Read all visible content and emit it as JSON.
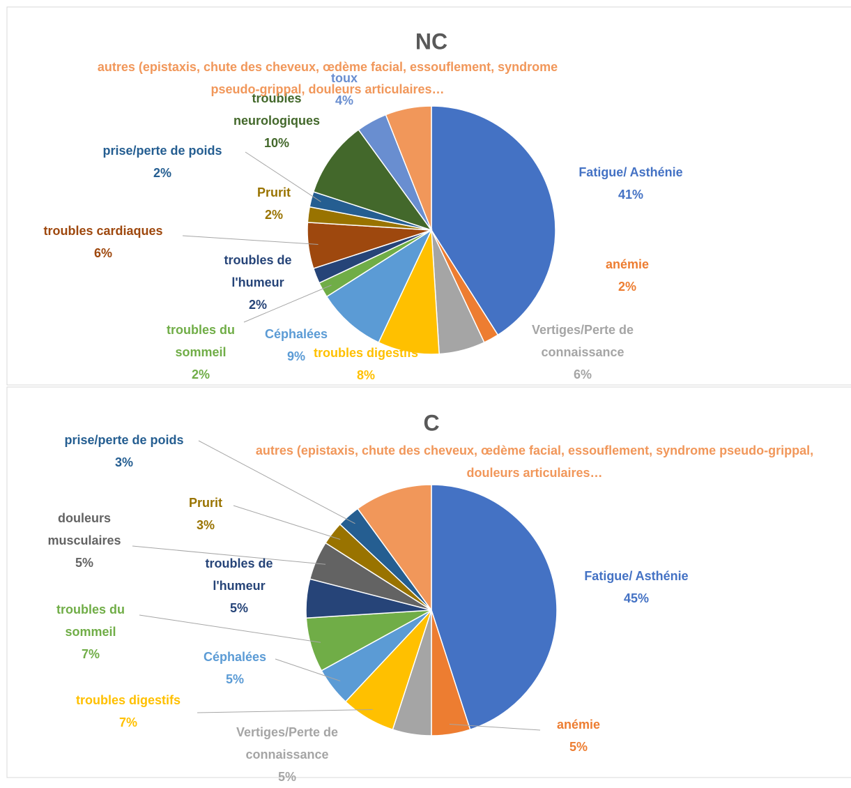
{
  "chart_data": [
    {
      "type": "pie",
      "title": "NC",
      "categories": [
        "Fatigue/ Asthénie",
        "anémie",
        "Vertiges/Perte de connaissance",
        "troubles digestifs",
        "Céphalées",
        "troubles du sommeil",
        "troubles de l'humeur",
        "troubles cardiaques",
        "Prurit",
        "prise/perte de poids",
        "troubles neurologiques",
        "toux",
        "autres (epistaxis, chute des cheveux, œdème facial, essouflement, syndrome pseudo-grippal, douleurs articulaires…"
      ],
      "values": [
        41,
        2,
        6,
        8,
        9,
        2,
        2,
        6,
        2,
        2,
        10,
        4,
        6
      ],
      "value_labels": [
        "41%",
        "2%",
        "6%",
        "8%",
        "9%",
        "2%",
        "2%",
        "6%",
        "2%",
        "2%",
        "10%",
        "4%",
        null
      ],
      "colors": [
        "#4472C4",
        "#ED7D31",
        "#A5A5A5",
        "#FFC000",
        "#5B9BD5",
        "#70AD47",
        "#264478",
        "#9E480E",
        "#997300",
        "#255E91",
        "#43682B",
        "#698ED0",
        "#F1975A"
      ]
    },
    {
      "type": "pie",
      "title": "C",
      "categories": [
        "Fatigue/ Asthénie",
        "anémie",
        "Vertiges/Perte de connaissance",
        "troubles digestifs",
        "Céphalées",
        "troubles du sommeil",
        "troubles de l'humeur",
        "douleurs musculaires",
        "Prurit",
        "prise/perte de poids",
        "autres (epistaxis, chute des cheveux, œdème facial, essouflement, syndrome pseudo-grippal, douleurs articulaires…"
      ],
      "values": [
        45,
        5,
        5,
        7,
        5,
        7,
        5,
        5,
        3,
        3,
        10
      ],
      "value_labels": [
        "45%",
        "5%",
        "5%",
        "7%",
        "5%",
        "7%",
        "5%",
        "5%",
        "3%",
        "3%",
        null
      ],
      "colors": [
        "#4472C4",
        "#ED7D31",
        "#A5A5A5",
        "#FFC000",
        "#5B9BD5",
        "#70AD47",
        "#264478",
        "#636363",
        "#997300",
        "#255E91",
        "#F1975A"
      ]
    }
  ]
}
